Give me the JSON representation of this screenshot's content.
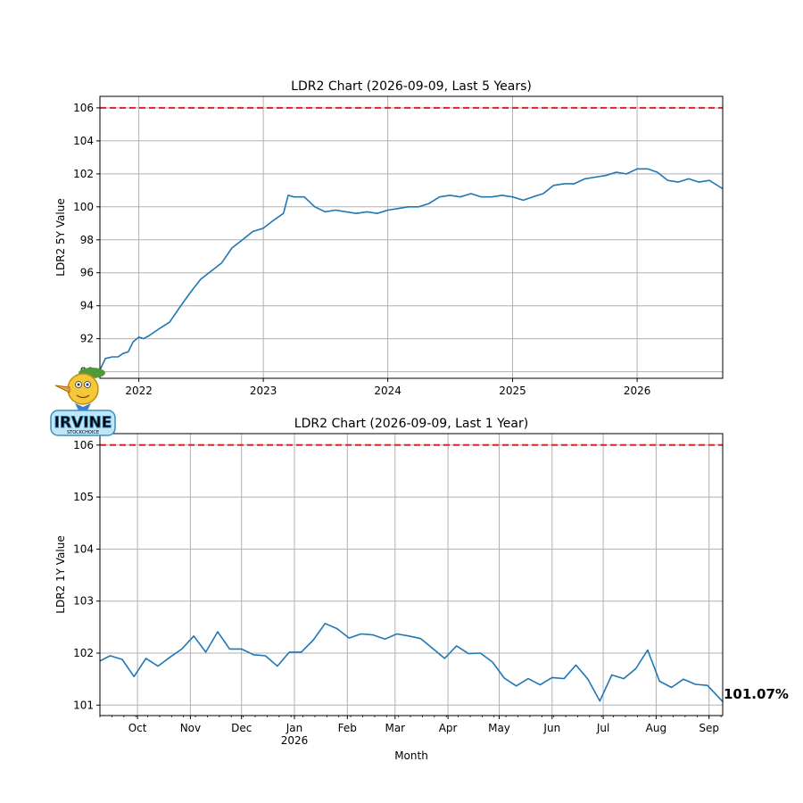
{
  "colors": {
    "line": "#1f77b4",
    "threshold": "#d62728",
    "grid": "#b0b0b0"
  },
  "logo": {
    "text": "IRVINE",
    "subtext": "STOCKCHOICE"
  },
  "chart_data": [
    {
      "type": "line",
      "title": "LDR2 Chart (2026-09-09, Last 5 Years)",
      "ylabel": "LDR2 5Y Value",
      "xlabel": "",
      "xlim": [
        "2021-09-09",
        "2026-09-09"
      ],
      "ylim": [
        89.6,
        106.7
      ],
      "yticks": [
        90,
        92,
        94,
        96,
        98,
        100,
        102,
        104,
        106
      ],
      "xticks": [
        {
          "date": "2022-01-01",
          "label": "2022"
        },
        {
          "date": "2023-01-01",
          "label": "2023"
        },
        {
          "date": "2024-01-01",
          "label": "2024"
        },
        {
          "date": "2025-01-01",
          "label": "2025"
        },
        {
          "date": "2026-01-01",
          "label": "2026"
        }
      ],
      "threshold": 106,
      "grid": true,
      "series": [
        {
          "points": [
            [
              "2021-09-09",
              90.1
            ],
            [
              "2021-09-25",
              90.8
            ],
            [
              "2021-10-15",
              90.9
            ],
            [
              "2021-11-01",
              90.9
            ],
            [
              "2021-11-15",
              91.1
            ],
            [
              "2021-12-01",
              91.2
            ],
            [
              "2021-12-15",
              91.8
            ],
            [
              "2022-01-01",
              92.1
            ],
            [
              "2022-01-15",
              92.0
            ],
            [
              "2022-02-01",
              92.2
            ],
            [
              "2022-03-01",
              92.6
            ],
            [
              "2022-04-01",
              93.0
            ],
            [
              "2022-05-01",
              93.9
            ],
            [
              "2022-06-01",
              94.8
            ],
            [
              "2022-07-01",
              95.6
            ],
            [
              "2022-08-01",
              96.1
            ],
            [
              "2022-09-01",
              96.6
            ],
            [
              "2022-10-01",
              97.5
            ],
            [
              "2022-11-01",
              98.0
            ],
            [
              "2022-12-01",
              98.5
            ],
            [
              "2023-01-01",
              98.7
            ],
            [
              "2023-02-01",
              99.2
            ],
            [
              "2023-03-01",
              99.6
            ],
            [
              "2023-03-15",
              100.7
            ],
            [
              "2023-04-01",
              100.6
            ],
            [
              "2023-05-01",
              100.6
            ],
            [
              "2023-06-01",
              100.0
            ],
            [
              "2023-07-01",
              99.7
            ],
            [
              "2023-08-01",
              99.8
            ],
            [
              "2023-09-01",
              99.7
            ],
            [
              "2023-10-01",
              99.6
            ],
            [
              "2023-11-01",
              99.7
            ],
            [
              "2023-12-01",
              99.6
            ],
            [
              "2024-01-01",
              99.8
            ],
            [
              "2024-02-01",
              99.9
            ],
            [
              "2024-03-01",
              100.0
            ],
            [
              "2024-04-01",
              100.0
            ],
            [
              "2024-05-01",
              100.2
            ],
            [
              "2024-06-01",
              100.6
            ],
            [
              "2024-07-01",
              100.7
            ],
            [
              "2024-08-01",
              100.6
            ],
            [
              "2024-09-01",
              100.8
            ],
            [
              "2024-10-01",
              100.6
            ],
            [
              "2024-11-01",
              100.6
            ],
            [
              "2024-12-01",
              100.7
            ],
            [
              "2025-01-01",
              100.6
            ],
            [
              "2025-02-01",
              100.4
            ],
            [
              "2025-03-01",
              100.6
            ],
            [
              "2025-04-01",
              100.8
            ],
            [
              "2025-05-01",
              101.3
            ],
            [
              "2025-06-01",
              101.4
            ],
            [
              "2025-07-01",
              101.4
            ],
            [
              "2025-08-01",
              101.7
            ],
            [
              "2025-09-01",
              101.8
            ],
            [
              "2025-10-01",
              101.9
            ],
            [
              "2025-11-01",
              102.1
            ],
            [
              "2025-12-01",
              102.0
            ],
            [
              "2026-01-01",
              102.3
            ],
            [
              "2026-02-01",
              102.3
            ],
            [
              "2026-03-01",
              102.1
            ],
            [
              "2026-04-01",
              101.6
            ],
            [
              "2026-05-01",
              101.5
            ],
            [
              "2026-06-01",
              101.7
            ],
            [
              "2026-07-01",
              101.5
            ],
            [
              "2026-08-01",
              101.6
            ],
            [
              "2026-09-09",
              101.1
            ]
          ]
        }
      ]
    },
    {
      "type": "line",
      "title": "LDR2 Chart (2026-09-09, Last 1 Year)",
      "ylabel": "LDR2 1Y Value",
      "xlabel": "Month",
      "xlim": [
        "2025-09-09",
        "2026-09-09"
      ],
      "ylim": [
        100.8,
        106.22
      ],
      "yticks": [
        101,
        102,
        103,
        104,
        105,
        106
      ],
      "xticks": [
        {
          "date": "2025-10-01",
          "label": "Oct"
        },
        {
          "date": "2025-11-01",
          "label": "Nov"
        },
        {
          "date": "2025-12-01",
          "label": "Dec"
        },
        {
          "date": "2026-01-01",
          "label": "Jan",
          "sublabel": "2026"
        },
        {
          "date": "2026-02-01",
          "label": "Feb"
        },
        {
          "date": "2026-03-01",
          "label": "Mar"
        },
        {
          "date": "2026-04-01",
          "label": "Apr"
        },
        {
          "date": "2026-05-01",
          "label": "May"
        },
        {
          "date": "2026-06-01",
          "label": "Jun"
        },
        {
          "date": "2026-07-01",
          "label": "Jul"
        },
        {
          "date": "2026-08-01",
          "label": "Aug"
        },
        {
          "date": "2026-09-01",
          "label": "Sep"
        }
      ],
      "threshold": 106,
      "grid": true,
      "end_label": "101.07%",
      "series": [
        {
          "points": [
            [
              "2025-09-09",
              101.85
            ],
            [
              "2025-09-15",
              101.95
            ],
            [
              "2025-09-22",
              101.88
            ],
            [
              "2025-09-29",
              101.55
            ],
            [
              "2025-10-06",
              101.9
            ],
            [
              "2025-10-13",
              101.75
            ],
            [
              "2025-10-20",
              101.92
            ],
            [
              "2025-10-27",
              102.08
            ],
            [
              "2025-11-03",
              102.33
            ],
            [
              "2025-11-10",
              102.02
            ],
            [
              "2025-11-17",
              102.41
            ],
            [
              "2025-11-24",
              102.08
            ],
            [
              "2025-12-01",
              102.08
            ],
            [
              "2025-12-08",
              101.97
            ],
            [
              "2025-12-15",
              101.95
            ],
            [
              "2025-12-22",
              101.75
            ],
            [
              "2025-12-29",
              102.02
            ],
            [
              "2026-01-05",
              102.02
            ],
            [
              "2026-01-12",
              102.25
            ],
            [
              "2026-01-19",
              102.57
            ],
            [
              "2026-01-26",
              102.47
            ],
            [
              "2026-02-02",
              102.29
            ],
            [
              "2026-02-09",
              102.37
            ],
            [
              "2026-02-16",
              102.35
            ],
            [
              "2026-02-23",
              102.27
            ],
            [
              "2026-03-02",
              102.37
            ],
            [
              "2026-03-09",
              102.33
            ],
            [
              "2026-03-16",
              102.28
            ],
            [
              "2026-03-23",
              102.09
            ],
            [
              "2026-03-30",
              101.9
            ],
            [
              "2026-04-06",
              102.14
            ],
            [
              "2026-04-13",
              101.99
            ],
            [
              "2026-04-20",
              102.0
            ],
            [
              "2026-04-27",
              101.83
            ],
            [
              "2026-05-04",
              101.52
            ],
            [
              "2026-05-11",
              101.37
            ],
            [
              "2026-05-18",
              101.51
            ],
            [
              "2026-05-25",
              101.39
            ],
            [
              "2026-06-01",
              101.53
            ],
            [
              "2026-06-08",
              101.51
            ],
            [
              "2026-06-15",
              101.77
            ],
            [
              "2026-06-22",
              101.5
            ],
            [
              "2026-06-29",
              101.08
            ],
            [
              "2026-07-06",
              101.58
            ],
            [
              "2026-07-13",
              101.51
            ],
            [
              "2026-07-20",
              101.7
            ],
            [
              "2026-07-27",
              102.06
            ],
            [
              "2026-08-03",
              101.46
            ],
            [
              "2026-08-10",
              101.34
            ],
            [
              "2026-08-17",
              101.5
            ],
            [
              "2026-08-24",
              101.4
            ],
            [
              "2026-08-31",
              101.38
            ],
            [
              "2026-09-09",
              101.07
            ]
          ]
        }
      ]
    }
  ]
}
